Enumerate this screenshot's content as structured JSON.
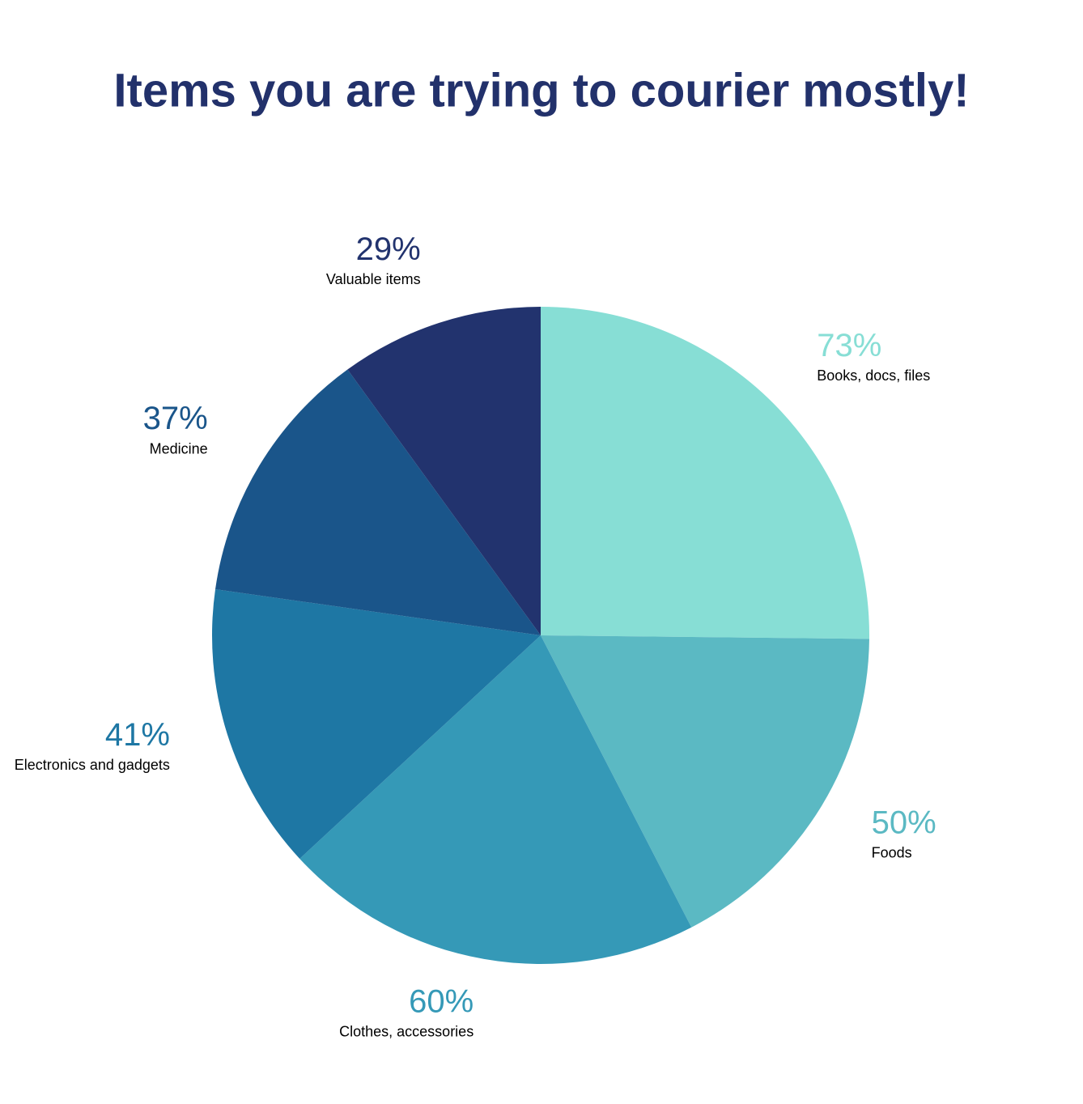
{
  "chart_data": {
    "type": "pie",
    "title": "Items you are trying to courier mostly!",
    "categories": [
      "Books, docs, files",
      "Foods",
      "Clothes, accessories",
      "Electronics and gadgets",
      "Medicine",
      "Valuable items"
    ],
    "values": [
      73,
      50,
      60,
      41,
      37,
      29
    ],
    "value_labels": [
      "73%",
      "50%",
      "60%",
      "41%",
      "37%",
      "29%"
    ],
    "colors": [
      "#87ded5",
      "#5bb9c3",
      "#3599b7",
      "#1e77a4",
      "#1a558a",
      "#22336e"
    ]
  }
}
